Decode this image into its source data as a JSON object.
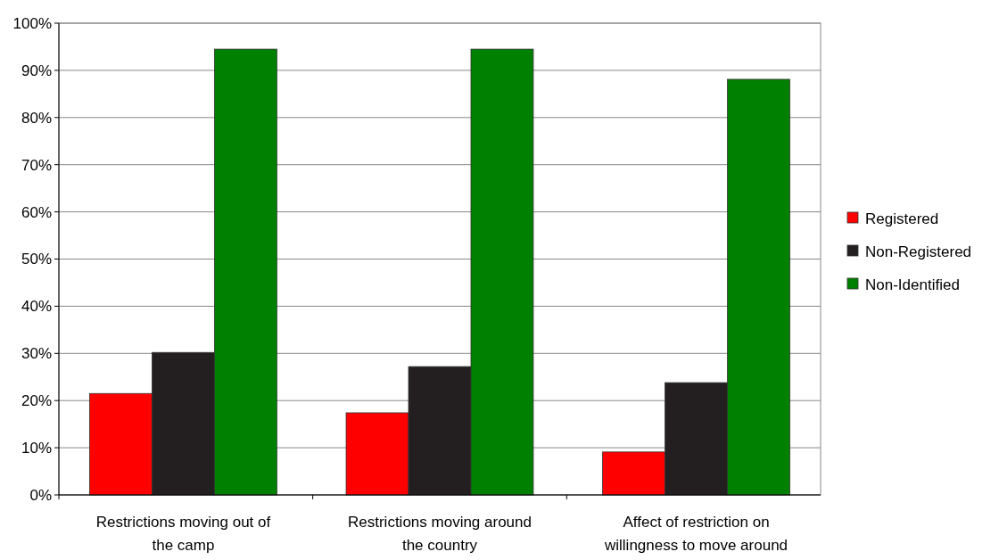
{
  "chart_data": {
    "type": "bar",
    "categories": [
      "Restrictions moving out of the camp",
      "Restrictions moving around the country",
      "Affect of restriction on willingness to move around"
    ],
    "series": [
      {
        "name": "Registered",
        "color": "#ff0000",
        "values": [
          21.5,
          17.4,
          9.1
        ]
      },
      {
        "name": "Non-Registered",
        "color": "#231f20",
        "values": [
          30.2,
          27.2,
          23.8
        ]
      },
      {
        "name": "Non-Identified",
        "color": "#008000",
        "values": [
          94.5,
          94.5,
          88.1
        ]
      }
    ],
    "ylim": [
      0,
      100
    ],
    "yticks": [
      {
        "value": 0,
        "label": "0%"
      },
      {
        "value": 10,
        "label": "10%"
      },
      {
        "value": 20,
        "label": "20%"
      },
      {
        "value": 30,
        "label": "30%"
      },
      {
        "value": 40,
        "label": "40%"
      },
      {
        "value": 50,
        "label": "50%"
      },
      {
        "value": 60,
        "label": "60%"
      },
      {
        "value": 70,
        "label": "70%"
      },
      {
        "value": 80,
        "label": "80%"
      },
      {
        "value": 90,
        "label": "90%"
      },
      {
        "value": 100,
        "label": "100%"
      }
    ],
    "grid": "y",
    "legend": "right"
  }
}
